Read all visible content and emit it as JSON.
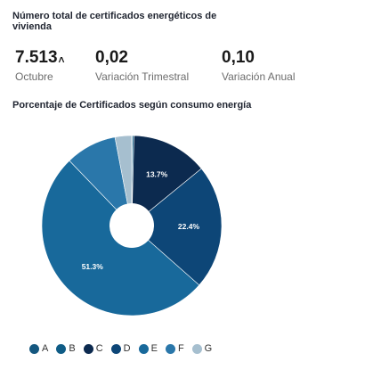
{
  "header": {
    "title": "Número total de certificados energéticos de vivienda"
  },
  "kpis": [
    {
      "value": "7.513",
      "trend_icon": "arrow-up-icon",
      "label": "Octubre"
    },
    {
      "value": "0,02",
      "label": "Variación Trimestral"
    },
    {
      "value": "0,10",
      "label": "Variación Anual"
    }
  ],
  "kpi_arrow": "˄",
  "chart_data": {
    "type": "pie",
    "title": "Porcentaje de Certificados según consumo energía",
    "categories": [
      "A",
      "B",
      "C",
      "D",
      "E",
      "F",
      "G"
    ],
    "values": [
      0.1,
      0.3,
      13.7,
      22.4,
      51.3,
      9.2,
      3.0
    ],
    "labels": [
      "",
      "",
      "13.7%",
      "22.4%",
      "51.3%",
      "",
      ""
    ],
    "colors": [
      "#14577f",
      "#0f5c86",
      "#0c2a4f",
      "#0d4677",
      "#18699b",
      "#2a77aa",
      "#a6bfcf"
    ],
    "donut": true,
    "legend": "bottom"
  }
}
